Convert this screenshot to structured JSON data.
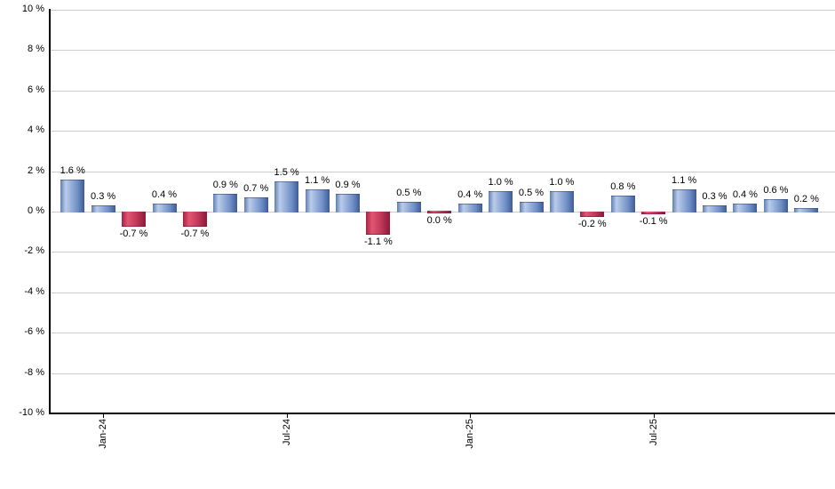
{
  "chart_data": {
    "type": "bar",
    "title": "",
    "unit": "%",
    "ylim": [
      -10,
      10
    ],
    "grid": true,
    "legend": null,
    "y_ticks": [
      {
        "value": 10,
        "label": "10 %"
      },
      {
        "value": 8,
        "label": "8 %"
      },
      {
        "value": 6,
        "label": "6 %"
      },
      {
        "value": 4,
        "label": "4 %"
      },
      {
        "value": 2,
        "label": "2 %"
      },
      {
        "value": 0,
        "label": "0 %"
      },
      {
        "value": -2,
        "label": "-2 %"
      },
      {
        "value": -4,
        "label": "-4 %"
      },
      {
        "value": -6,
        "label": "-6 %"
      },
      {
        "value": -8,
        "label": "-8 %"
      },
      {
        "value": -10,
        "label": "-10 %"
      }
    ],
    "bars": [
      {
        "value": 1.6,
        "label": "1.6 %"
      },
      {
        "value": 0.3,
        "label": "0.3 %"
      },
      {
        "value": -0.7,
        "label": "-0.7 %"
      },
      {
        "value": 0.4,
        "label": "0.4 %"
      },
      {
        "value": -0.7,
        "label": "-0.7 %"
      },
      {
        "value": 0.9,
        "label": "0.9 %"
      },
      {
        "value": 0.7,
        "label": "0.7 %"
      },
      {
        "value": 1.5,
        "label": "1.5 %"
      },
      {
        "value": 1.1,
        "label": "1.1 %"
      },
      {
        "value": 0.9,
        "label": "0.9 %"
      },
      {
        "value": -1.1,
        "label": "-1.1 %"
      },
      {
        "value": 0.5,
        "label": "0.5 %"
      },
      {
        "value": 0.0,
        "label": "0.0 %"
      },
      {
        "value": 0.4,
        "label": "0.4 %"
      },
      {
        "value": 1.0,
        "label": "1.0 %"
      },
      {
        "value": 0.5,
        "label": "0.5 %"
      },
      {
        "value": 1.0,
        "label": "1.0 %"
      },
      {
        "value": -0.2,
        "label": "-0.2 %"
      },
      {
        "value": 0.8,
        "label": "0.8 %"
      },
      {
        "value": -0.1,
        "label": "-0.1 %"
      },
      {
        "value": 1.1,
        "label": "1.1 %"
      },
      {
        "value": 0.3,
        "label": "0.3 %"
      },
      {
        "value": 0.4,
        "label": "0.4 %"
      },
      {
        "value": 0.6,
        "label": "0.6 %"
      },
      {
        "value": 0.2,
        "label": "0.2 %"
      }
    ],
    "x_ticks": [
      {
        "bar_index": 1,
        "label": "Jan-24"
      },
      {
        "bar_index": 7,
        "label": "Jul-24"
      },
      {
        "bar_index": 13,
        "label": "Jan-25"
      },
      {
        "bar_index": 19,
        "label": "Jul-25"
      }
    ],
    "colors": {
      "positive_bar": "#6e8ec5",
      "positive_bar_light": "#bacce9",
      "positive_bar_dark": "#3f5b95",
      "negative_bar": "#c43a5c",
      "negative_bar_light": "#e25672",
      "negative_bar_dark": "#8c1a38",
      "gridline": "#cccccc",
      "axis": "#000000",
      "text": "#000000"
    }
  }
}
